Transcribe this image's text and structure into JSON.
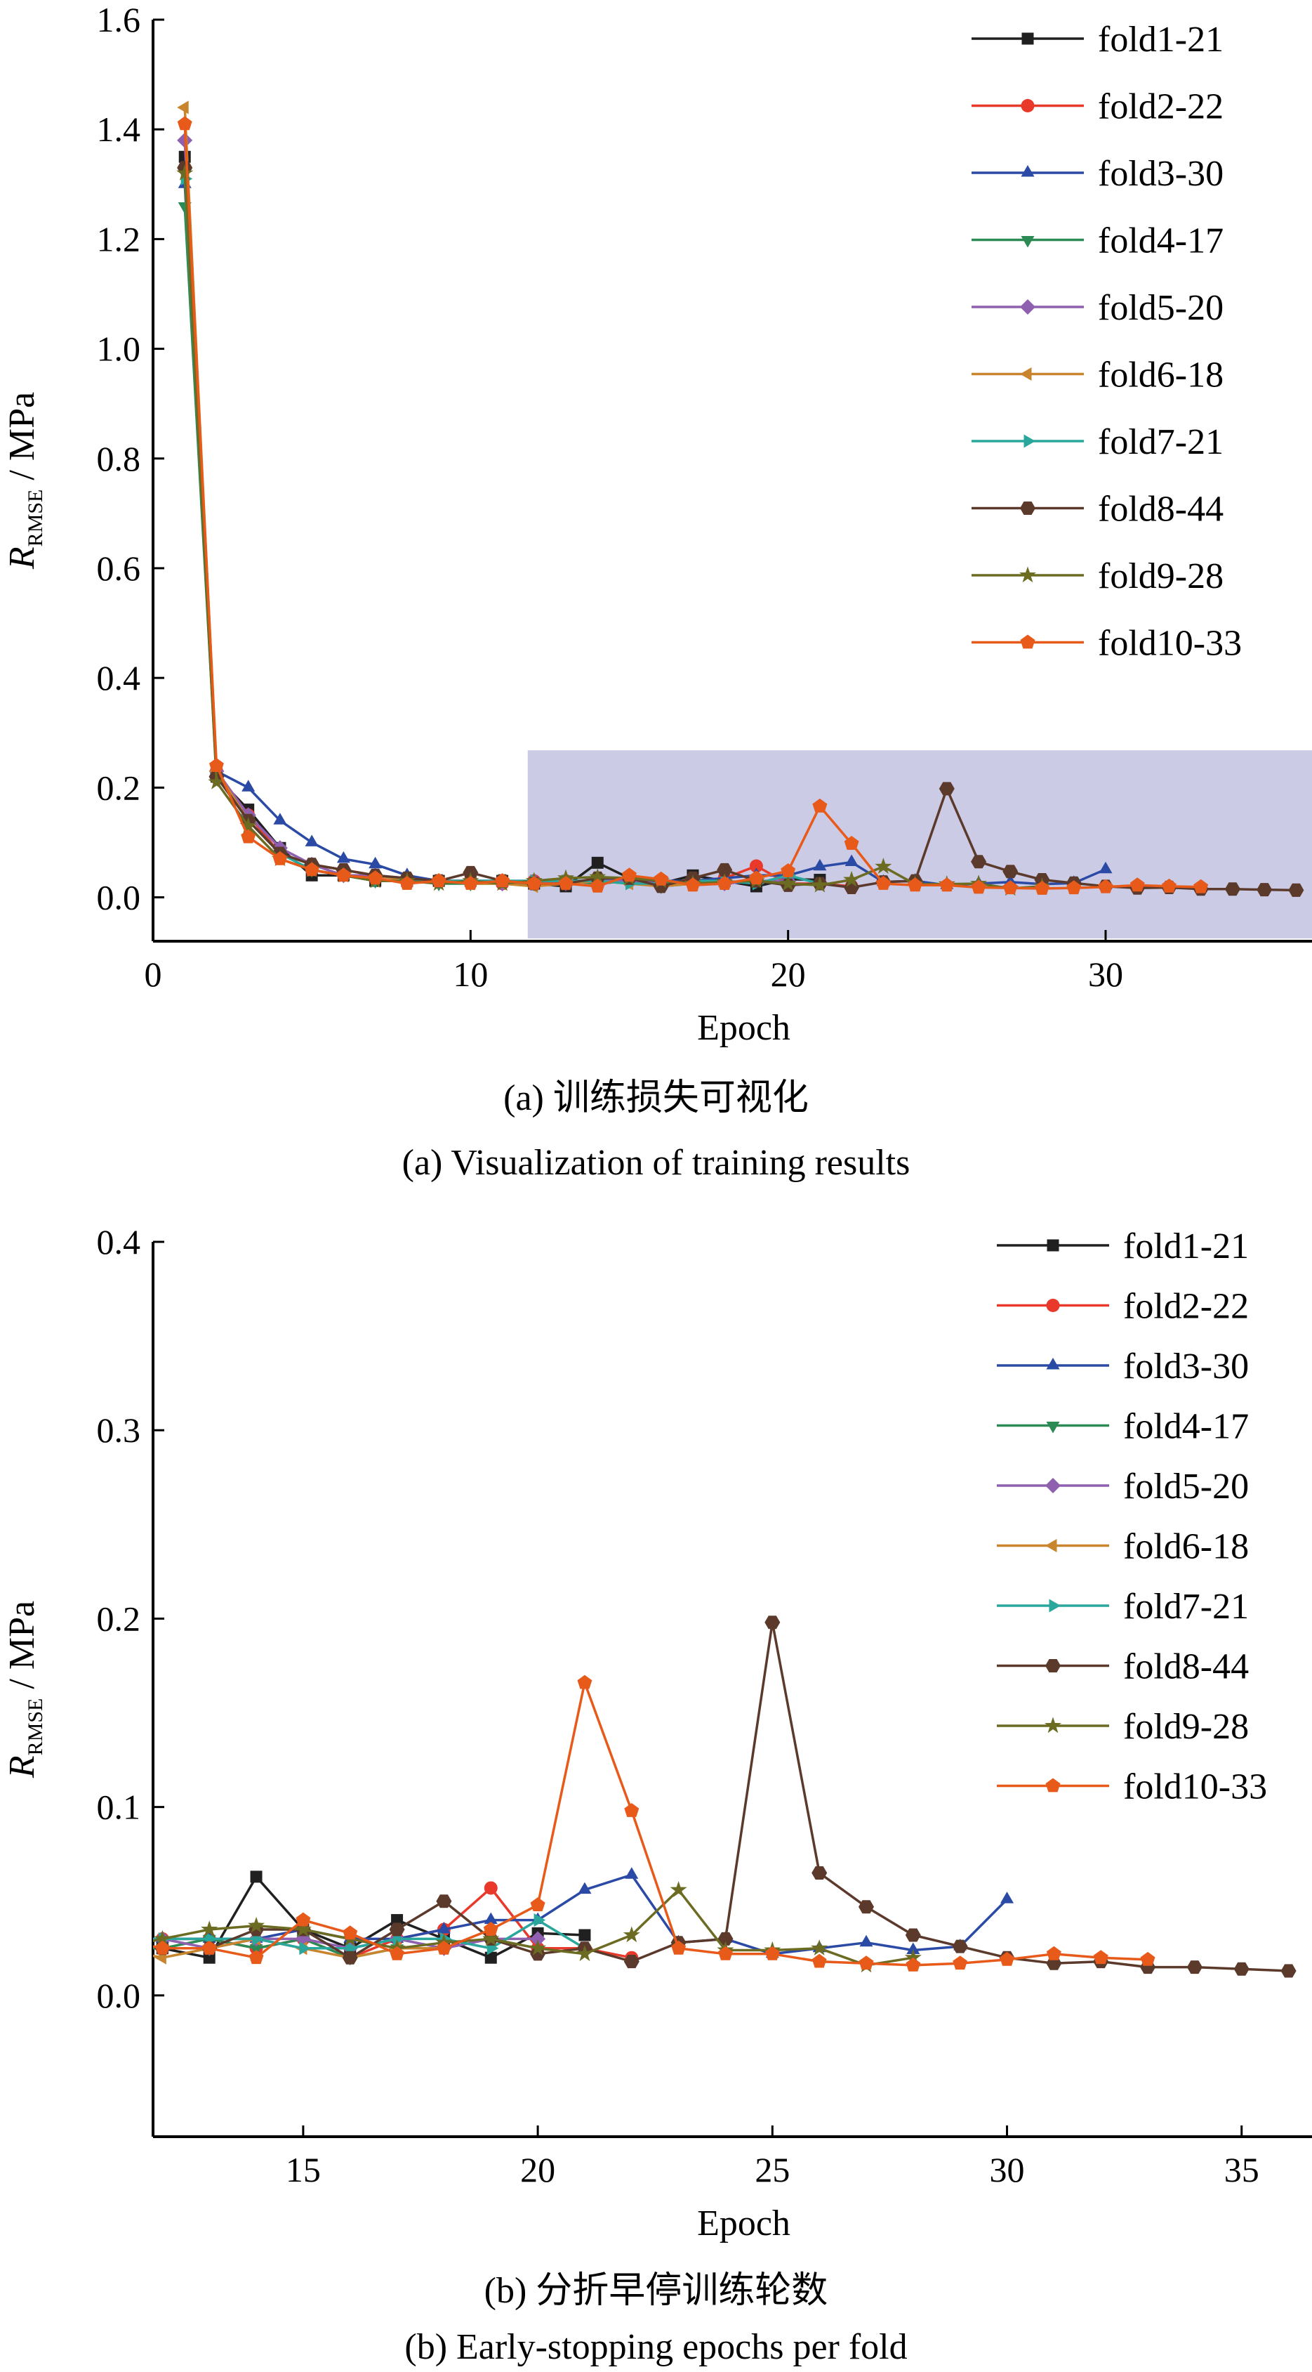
{
  "captions": {
    "a_cn": "(a) 训练损失可视化",
    "a_en": "(a) Visualization of training results",
    "b_cn": "(b) 分折早停训练轮数",
    "b_en": "(b) Early-stopping epochs per fold"
  },
  "chart_data": [
    {
      "type": "line",
      "xlabel": "Epoch",
      "ylabel": "R",
      "ylabel_subscript": "RMSE",
      "ylabel_unit": " / MPa",
      "xlim": [
        0,
        36.5
      ],
      "ylim": [
        -0.08,
        1.6
      ],
      "xticks": [
        0,
        10,
        20,
        30
      ],
      "yticks": [
        0.0,
        0.2,
        0.4,
        0.6,
        0.8,
        1.0,
        1.2,
        1.4,
        1.6
      ],
      "highlight_region": {
        "x": [
          11.8,
          36.5
        ],
        "y": [
          -0.075,
          0.268
        ],
        "color": "#cbcbe5"
      },
      "legend_position": "top-right",
      "grid": false
    },
    {
      "type": "line",
      "xlabel": "Epoch",
      "ylabel": "R",
      "ylabel_subscript": "RMSE",
      "ylabel_unit": " / MPa",
      "xlim": [
        11.8,
        36.5
      ],
      "ylim": [
        -0.075,
        0.4
      ],
      "xticks": [
        15,
        20,
        25,
        30,
        35
      ],
      "yticks": [
        0.0,
        0.1,
        0.2,
        0.3,
        0.4
      ],
      "legend_position": "top-right",
      "grid": false
    }
  ],
  "series": [
    {
      "name": "fold1-21",
      "color": "#202020",
      "marker": "square",
      "values": [
        1.35,
        0.22,
        0.16,
        0.09,
        0.04,
        0.04,
        0.03,
        0.03,
        0.03,
        0.03,
        0.03,
        0.025,
        0.02,
        0.063,
        0.035,
        0.025,
        0.04,
        0.03,
        0.02,
        0.033,
        0.032
      ]
    },
    {
      "name": "fold2-22",
      "color": "#e8392b",
      "marker": "circle",
      "values": [
        1.33,
        0.23,
        0.15,
        0.08,
        0.06,
        0.05,
        0.04,
        0.03,
        0.03,
        0.03,
        0.025,
        0.03,
        0.03,
        0.025,
        0.03,
        0.02,
        0.03,
        0.035,
        0.057,
        0.025,
        0.025,
        0.02
      ]
    },
    {
      "name": "fold3-30",
      "color": "#2a4aa6",
      "marker": "triangle-up",
      "values": [
        1.3,
        0.23,
        0.2,
        0.14,
        0.1,
        0.07,
        0.06,
        0.04,
        0.03,
        0.03,
        0.03,
        0.03,
        0.03,
        0.03,
        0.035,
        0.03,
        0.03,
        0.035,
        0.04,
        0.04,
        0.056,
        0.064,
        0.028,
        0.03,
        0.022,
        0.025,
        0.028,
        0.024,
        0.026,
        0.051
      ]
    },
    {
      "name": "fold4-17",
      "color": "#2c8a55",
      "marker": "triangle-down",
      "values": [
        1.26,
        0.22,
        0.14,
        0.08,
        0.05,
        0.04,
        0.03,
        0.03,
        0.025,
        0.025,
        0.025,
        0.025,
        0.03,
        0.025,
        0.03,
        0.02,
        0.025
      ]
    },
    {
      "name": "fold5-20",
      "color": "#8f5fb0",
      "marker": "diamond",
      "values": [
        1.38,
        0.23,
        0.15,
        0.09,
        0.06,
        0.04,
        0.04,
        0.03,
        0.03,
        0.03,
        0.025,
        0.03,
        0.025,
        0.03,
        0.03,
        0.025,
        0.03,
        0.025,
        0.03,
        0.03
      ]
    },
    {
      "name": "fold6-18",
      "color": "#c9852e",
      "marker": "triangle-left",
      "values": [
        1.44,
        0.23,
        0.14,
        0.08,
        0.06,
        0.05,
        0.04,
        0.03,
        0.03,
        0.025,
        0.025,
        0.02,
        0.025,
        0.03,
        0.025,
        0.02,
        0.025,
        0.025
      ]
    },
    {
      "name": "fold7-21",
      "color": "#2aa79c",
      "marker": "triangle-right",
      "values": [
        1.31,
        0.22,
        0.14,
        0.08,
        0.05,
        0.04,
        0.03,
        0.03,
        0.03,
        0.03,
        0.03,
        0.03,
        0.03,
        0.03,
        0.025,
        0.025,
        0.03,
        0.03,
        0.025,
        0.04,
        0.025
      ]
    },
    {
      "name": "fold8-44",
      "color": "#5b3a2c",
      "marker": "hexagon",
      "values": [
        1.33,
        0.22,
        0.14,
        0.08,
        0.06,
        0.05,
        0.04,
        0.035,
        0.03,
        0.045,
        0.03,
        0.025,
        0.025,
        0.035,
        0.035,
        0.02,
        0.035,
        0.05,
        0.03,
        0.022,
        0.025,
        0.018,
        0.028,
        0.03,
        0.198,
        0.065,
        0.047,
        0.032,
        0.026,
        0.02,
        0.017,
        0.018,
        0.015,
        0.015,
        0.014,
        0.013
      ]
    },
    {
      "name": "fold9-28",
      "color": "#6b6b22",
      "marker": "star",
      "values": [
        1.32,
        0.21,
        0.13,
        0.07,
        0.05,
        0.04,
        0.03,
        0.03,
        0.025,
        0.03,
        0.025,
        0.03,
        0.035,
        0.037,
        0.035,
        0.03,
        0.025,
        0.028,
        0.03,
        0.025,
        0.022,
        0.032,
        0.056,
        0.024,
        0.024,
        0.025,
        0.016,
        0.02
      ]
    },
    {
      "name": "fold10-33",
      "color": "#e85a1a",
      "marker": "pentagon",
      "values": [
        1.41,
        0.24,
        0.11,
        0.07,
        0.05,
        0.04,
        0.035,
        0.025,
        0.03,
        0.025,
        0.03,
        0.025,
        0.025,
        0.02,
        0.04,
        0.033,
        0.022,
        0.025,
        0.035,
        0.048,
        0.166,
        0.098,
        0.025,
        0.022,
        0.022,
        0.018,
        0.017,
        0.016,
        0.017,
        0.019,
        0.022,
        0.02,
        0.019
      ]
    }
  ]
}
